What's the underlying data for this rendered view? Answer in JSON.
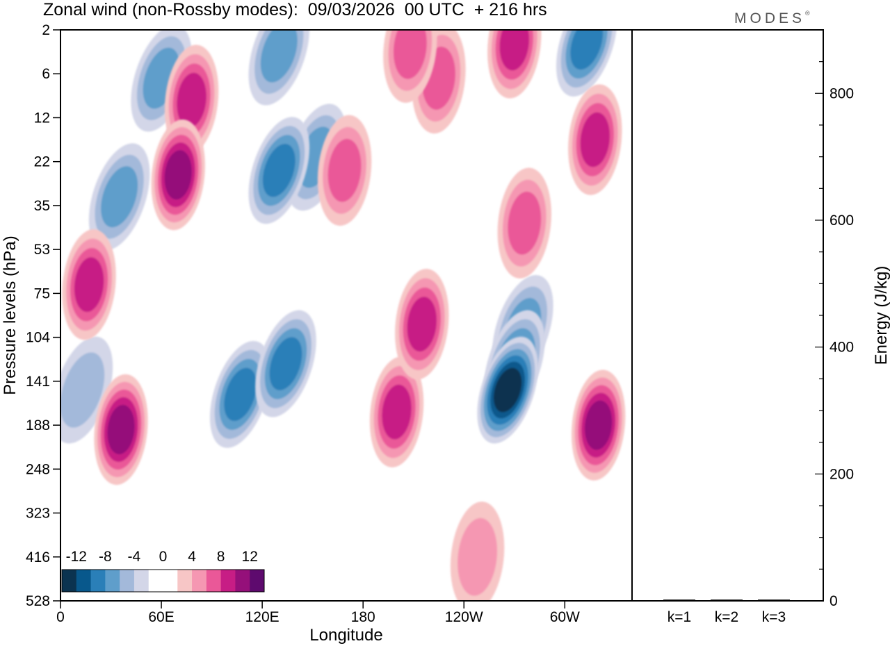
{
  "chart_data": {
    "type": "heatmap",
    "title": "Zonal wind (non-Rossby modes):  09/03/2026  00 UTC  + 216 hrs",
    "brand": "MODES",
    "brand_mark": "®",
    "xlabel": "Longitude",
    "ylabel": "Pressure levels (hPa)",
    "x_ticks": [
      "0",
      "60E",
      "120E",
      "180",
      "120W",
      "60W"
    ],
    "x_tick_degrees": [
      0,
      60,
      120,
      180,
      240,
      300
    ],
    "x_range_degrees": [
      0,
      340
    ],
    "y_ticks": [
      "2",
      "6",
      "12",
      "22",
      "35",
      "53",
      "75",
      "104",
      "141",
      "188",
      "248",
      "323",
      "416",
      "528"
    ],
    "colorbar": {
      "labels": [
        "-12",
        "-8",
        "-4",
        "0",
        "4",
        "8",
        "12"
      ],
      "colors": [
        "#0b3350",
        "#08588c",
        "#2a7fb8",
        "#5f9ecb",
        "#a3b9da",
        "#d3d6e8",
        "#ffffff",
        "#ffffff",
        "#f7c6c6",
        "#f597b2",
        "#ea5898",
        "#c71d85",
        "#95107a",
        "#5e0a6e"
      ]
    },
    "field_values": {
      "description": "Zonal wind anomaly blobs; lon in degrees east, level index 0=2hPa .. 13=528hPa, value in colour-scale units",
      "blobs": [
        {
          "lon": 266,
          "lev": 8.2,
          "value": -12
        },
        {
          "lon": 270,
          "lev": 7.6,
          "value": -7
        },
        {
          "lon": 275,
          "lev": 6.8,
          "value": -5
        },
        {
          "lon": 107,
          "lev": 8.3,
          "value": -8
        },
        {
          "lon": 134,
          "lev": 7.6,
          "value": -8
        },
        {
          "lon": 13,
          "lev": 8.2,
          "value": -4
        },
        {
          "lon": 130,
          "lev": 3.2,
          "value": -7
        },
        {
          "lon": 152,
          "lev": 2.9,
          "value": -6
        },
        {
          "lon": 35,
          "lev": 3.8,
          "value": -6
        },
        {
          "lon": 60,
          "lev": 1.1,
          "value": -6
        },
        {
          "lon": 313,
          "lev": 0.3,
          "value": -7
        },
        {
          "lon": 130,
          "lev": 0.5,
          "value": -5
        },
        {
          "lon": 200,
          "lev": 8.7,
          "value": 7
        },
        {
          "lon": 215,
          "lev": 6.7,
          "value": 7
        },
        {
          "lon": 320,
          "lev": 9.0,
          "value": 10
        },
        {
          "lon": 36,
          "lev": 9.1,
          "value": 9
        },
        {
          "lon": 70,
          "lev": 3.3,
          "value": 9
        },
        {
          "lon": 78,
          "lev": 1.6,
          "value": 8
        },
        {
          "lon": 17,
          "lev": 5.8,
          "value": 8
        },
        {
          "lon": 318,
          "lev": 2.5,
          "value": 7
        },
        {
          "lon": 225,
          "lev": 1.1,
          "value": 6
        },
        {
          "lon": 270,
          "lev": 0.3,
          "value": 7
        },
        {
          "lon": 208,
          "lev": 0.4,
          "value": 6
        },
        {
          "lon": 276,
          "lev": 4.4,
          "value": 6
        },
        {
          "lon": 248,
          "lev": 12.0,
          "value": 4
        },
        {
          "lon": 169,
          "lev": 3.2,
          "value": 6
        }
      ]
    },
    "energy_axis": {
      "label": "Energy (J/kg)",
      "ticks": [
        "0",
        "200",
        "400",
        "600",
        "800"
      ],
      "tick_values": [
        0,
        200,
        400,
        600,
        800
      ],
      "range": [
        0,
        900
      ],
      "bar_labels": [
        "k=1",
        "k=2",
        "k=3"
      ],
      "bar_values": [
        2,
        2,
        2
      ]
    }
  }
}
